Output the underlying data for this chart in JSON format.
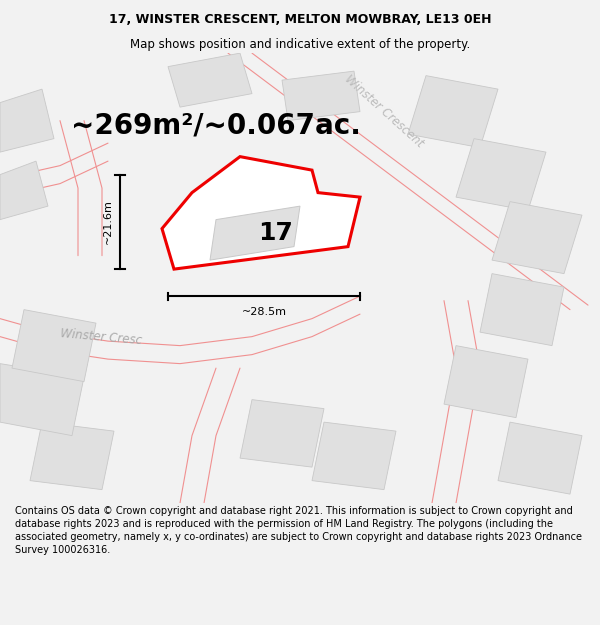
{
  "title_line1": "17, WINSTER CRESCENT, MELTON MOWBRAY, LE13 0EH",
  "title_line2": "Map shows position and indicative extent of the property.",
  "area_text": "~269m²/~0.067ac.",
  "label_17": "17",
  "dim_width": "~28.5m",
  "dim_height": "~21.6m",
  "road_label_lower": "Winster Cresc",
  "road_label_upper": "Winster Crescent",
  "footer_text": "Contains OS data © Crown copyright and database right 2021. This information is subject to Crown copyright and database rights 2023 and is reproduced with the permission of HM Land Registry. The polygons (including the associated geometry, namely x, y co-ordinates) are subject to Crown copyright and database rights 2023 Ordnance Survey 100026316.",
  "bg_color": "#f2f2f2",
  "map_bg": "#ffffff",
  "plot_color_fill": "#ffffff",
  "plot_color_edge": "#ee0000",
  "building_fill": "#e0e0e0",
  "building_edge": "#c8c8c8",
  "road_line_color": "#f09090",
  "title_fontsize": 9,
  "footer_fontsize": 7,
  "area_fontsize": 20,
  "label_fontsize": 18,
  "road_label_fontsize": 8.5,
  "dim_fontsize": 8
}
